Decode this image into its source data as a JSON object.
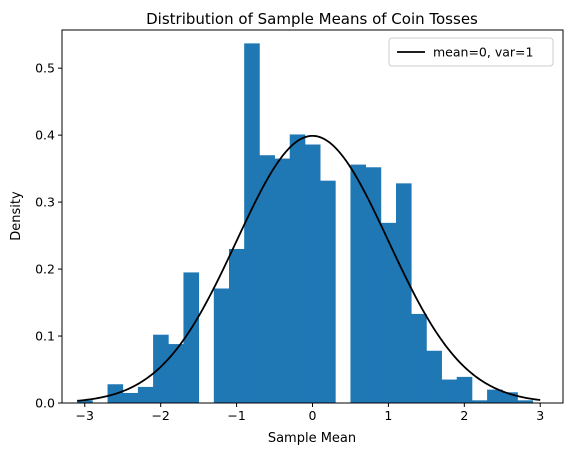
{
  "chart_data": {
    "type": "bar",
    "title": "Distribution of Sample Means of Coin Tosses",
    "xlabel": "Sample Mean",
    "ylabel": "Density",
    "xlim": [
      -3.3,
      3.3
    ],
    "ylim": [
      0,
      0.557
    ],
    "xticks": [
      -3,
      -2,
      -1,
      0,
      1,
      2,
      3
    ],
    "xtick_labels": [
      "−3",
      "−2",
      "−1",
      "0",
      "1",
      "2",
      "3"
    ],
    "yticks": [
      0.0,
      0.1,
      0.2,
      0.3,
      0.4,
      0.5
    ],
    "ytick_labels": [
      "0.0",
      "0.1",
      "0.2",
      "0.3",
      "0.4",
      "0.5"
    ],
    "grid": false,
    "legend_position": "top-right",
    "bar_color": "#1f77b4",
    "histogram": {
      "bin_width": 0.2,
      "bins": [
        {
          "x0": -3.1,
          "value": 0.004
        },
        {
          "x0": -2.9,
          "value": 0.0
        },
        {
          "x0": -2.7,
          "value": 0.028
        },
        {
          "x0": -2.5,
          "value": 0.015
        },
        {
          "x0": -2.3,
          "value": 0.024
        },
        {
          "x0": -2.1,
          "value": 0.102
        },
        {
          "x0": -1.9,
          "value": 0.088
        },
        {
          "x0": -1.7,
          "value": 0.195
        },
        {
          "x0": -1.5,
          "value": 0.0
        },
        {
          "x0": -1.3,
          "value": 0.171
        },
        {
          "x0": -1.1,
          "value": 0.23
        },
        {
          "x0": -0.9,
          "value": 0.537
        },
        {
          "x0": -0.7,
          "value": 0.37
        },
        {
          "x0": -0.5,
          "value": 0.365
        },
        {
          "x0": -0.3,
          "value": 0.401
        },
        {
          "x0": -0.1,
          "value": 0.386
        },
        {
          "x0": 0.1,
          "value": 0.332
        },
        {
          "x0": 0.3,
          "value": 0.0
        },
        {
          "x0": 0.5,
          "value": 0.356
        },
        {
          "x0": 0.7,
          "value": 0.352
        },
        {
          "x0": 0.9,
          "value": 0.269
        },
        {
          "x0": 1.1,
          "value": 0.328
        },
        {
          "x0": 1.3,
          "value": 0.133
        },
        {
          "x0": 1.5,
          "value": 0.078
        },
        {
          "x0": 1.7,
          "value": 0.035
        },
        {
          "x0": 1.9,
          "value": 0.039
        },
        {
          "x0": 2.1,
          "value": 0.004
        },
        {
          "x0": 2.3,
          "value": 0.02
        },
        {
          "x0": 2.5,
          "value": 0.016
        },
        {
          "x0": 2.7,
          "value": 0.004
        }
      ]
    },
    "series": [
      {
        "name": "mean=0, var=1",
        "type": "line",
        "color": "#000000",
        "function": "normal_pdf",
        "mean": 0,
        "variance": 1,
        "x_range": [
          -3.1,
          3.0
        ]
      }
    ]
  }
}
